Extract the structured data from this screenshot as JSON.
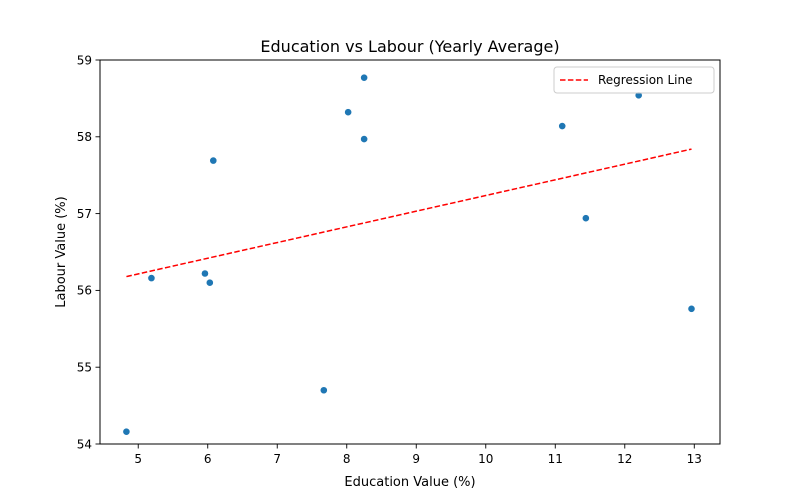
{
  "chart_data": {
    "type": "scatter",
    "title": "Education vs Labour (Yearly Average)",
    "xlabel": "Education Value (%)",
    "ylabel": "Labour Value (%)",
    "xlim": [
      4.45,
      13.37
    ],
    "ylim": [
      54.0,
      59.0
    ],
    "xticks": [
      5,
      6,
      7,
      8,
      9,
      10,
      11,
      12,
      13
    ],
    "yticks": [
      54,
      55,
      56,
      57,
      58,
      59
    ],
    "grid": false,
    "legend_position": "top-right",
    "series": [
      {
        "kind": "points",
        "color": "#1f77b4",
        "points": [
          {
            "x": 4.83,
            "y": 54.16
          },
          {
            "x": 5.19,
            "y": 56.16
          },
          {
            "x": 5.96,
            "y": 56.22
          },
          {
            "x": 6.03,
            "y": 56.1
          },
          {
            "x": 6.08,
            "y": 57.69
          },
          {
            "x": 7.67,
            "y": 54.7
          },
          {
            "x": 8.02,
            "y": 58.32
          },
          {
            "x": 8.25,
            "y": 57.97
          },
          {
            "x": 8.25,
            "y": 58.77
          },
          {
            "x": 11.1,
            "y": 58.14
          },
          {
            "x": 11.44,
            "y": 56.94
          },
          {
            "x": 12.2,
            "y": 58.54
          },
          {
            "x": 12.96,
            "y": 55.76
          }
        ]
      },
      {
        "kind": "line",
        "name": "Regression Line",
        "color": "#ff0000",
        "style": "dashed",
        "points": [
          {
            "x": 4.83,
            "y": 56.18
          },
          {
            "x": 12.96,
            "y": 57.84
          }
        ]
      }
    ]
  }
}
